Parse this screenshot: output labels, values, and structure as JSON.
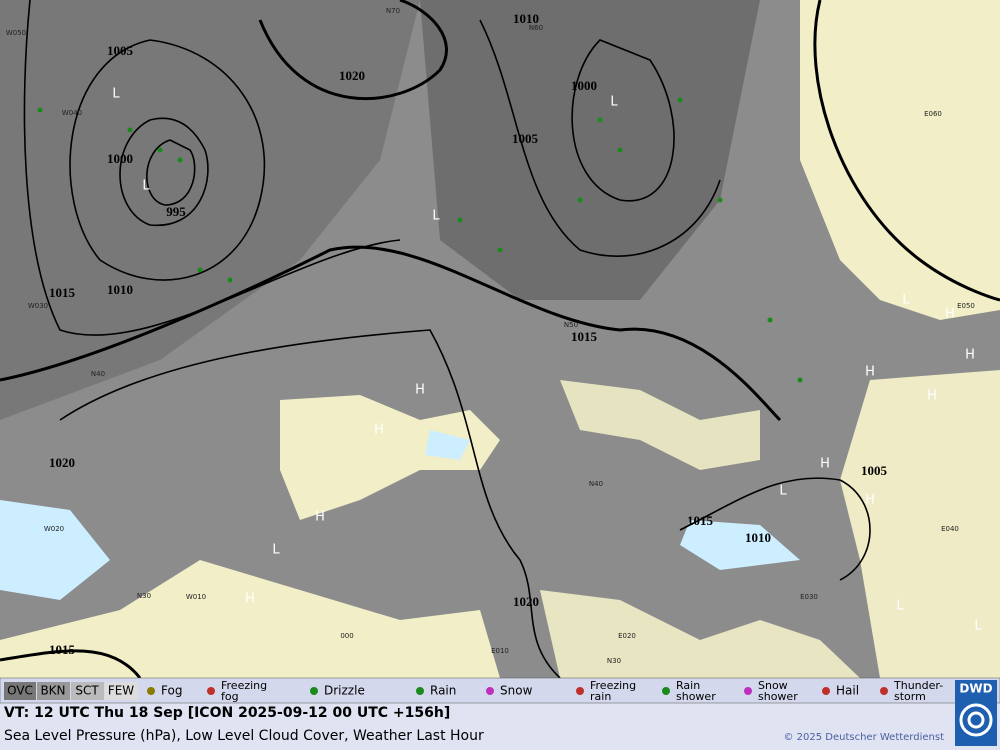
{
  "map": {
    "pressure_labels": [
      "1010",
      "1005",
      "1020",
      "1000",
      "1005",
      "1000",
      "995",
      "1015",
      "1010",
      "1015",
      "1020",
      "1005",
      "1015",
      "1010",
      "1020",
      "1015"
    ],
    "pressure_centers": [
      "L",
      "L",
      "L",
      "L",
      "H",
      "H",
      "H",
      "L",
      "H",
      "L",
      "H",
      "H",
      "H",
      "H",
      "H",
      "L",
      "H",
      "L",
      "L"
    ],
    "grid_labels": [
      "W050",
      "W040",
      "W030",
      "N40",
      "W020",
      "W010",
      "N30",
      "000",
      "E010",
      "N30",
      "E020",
      "E030",
      "E040",
      "E050",
      "E060",
      "N70",
      "N60",
      "N50",
      "N40"
    ]
  },
  "legend": {
    "items": [
      {
        "lines": [
          "OVC"
        ]
      },
      {
        "lines": [
          "BKN"
        ]
      },
      {
        "lines": [
          "SCT"
        ]
      },
      {
        "lines": [
          "FEW"
        ]
      },
      {
        "lines": [
          "Fog"
        ]
      },
      {
        "lines": [
          "Freezing",
          "fog"
        ]
      },
      {
        "lines": [
          "Drizzle"
        ]
      },
      {
        "lines": [
          "Rain"
        ]
      },
      {
        "lines": [
          "Snow"
        ]
      },
      {
        "lines": [
          "Freezing",
          "rain"
        ]
      },
      {
        "lines": [
          "Rain",
          "shower"
        ]
      },
      {
        "lines": [
          "Snow",
          "shower"
        ]
      },
      {
        "lines": [
          "Hail"
        ]
      },
      {
        "lines": [
          "Thunder-",
          "storm"
        ]
      }
    ]
  },
  "footer": {
    "valid_time": "VT: 12 UTC Thu  18 Sep [ICON 2025-09-12 00 UTC +156h]",
    "description": "Sea Level Pressure (hPa), Low Level Cloud Cover, Weather Last Hour",
    "copyright": "© 2025 Deutscher Wetterdienst",
    "logo": "DWD"
  }
}
